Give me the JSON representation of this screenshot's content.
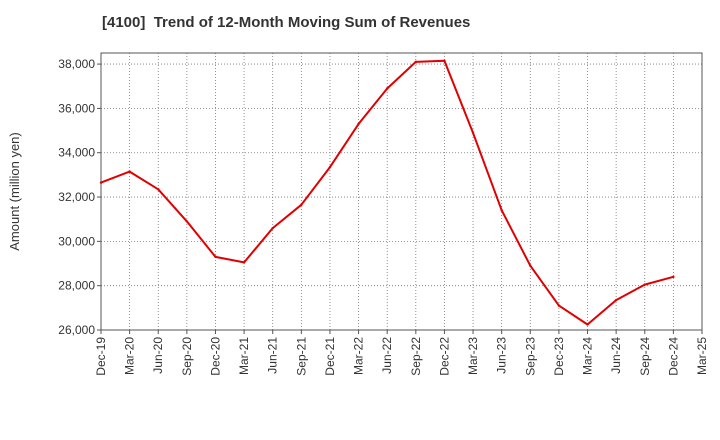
{
  "chart_data": {
    "type": "line",
    "title": "[4100]  Trend of 12-Month Moving Sum of Revenues",
    "xlabel": "",
    "ylabel": "Amount (million yen)",
    "ylim": [
      26000,
      38500
    ],
    "yticks": [
      26000,
      28000,
      30000,
      32000,
      34000,
      36000,
      38000
    ],
    "ytick_labels": [
      "26,000",
      "28,000",
      "30,000",
      "32,000",
      "34,000",
      "36,000",
      "38,000"
    ],
    "x_tick_labels": [
      "Dec-19",
      "Mar-20",
      "Jun-20",
      "Sep-20",
      "Dec-20",
      "Mar-21",
      "Jun-21",
      "Sep-21",
      "Dec-21",
      "Mar-22",
      "Jun-22",
      "Sep-22",
      "Dec-22",
      "Mar-23",
      "Jun-23",
      "Sep-23",
      "Dec-23",
      "Mar-24",
      "Jun-24",
      "Sep-24",
      "Dec-24",
      "Mar-25"
    ],
    "grid": true,
    "line_color": "#e00000",
    "series": [
      {
        "x": [
          "Dec-19",
          "Mar-20",
          "Jun-20",
          "Sep-20",
          "Dec-20",
          "Mar-21",
          "Jun-21",
          "Sep-21",
          "Dec-21",
          "Mar-22",
          "Jun-22",
          "Sep-22",
          "Dec-22",
          "Mar-23",
          "Jun-23",
          "Sep-23",
          "Dec-23",
          "Mar-24",
          "Jun-24",
          "Sep-24",
          "Dec-24"
        ],
        "values": [
          32650,
          33150,
          32350,
          30900,
          29300,
          29050,
          30600,
          31650,
          33350,
          35300,
          36900,
          38100,
          38150,
          34900,
          31400,
          28900,
          27100,
          26250,
          27350,
          28050,
          28400
        ]
      }
    ]
  }
}
